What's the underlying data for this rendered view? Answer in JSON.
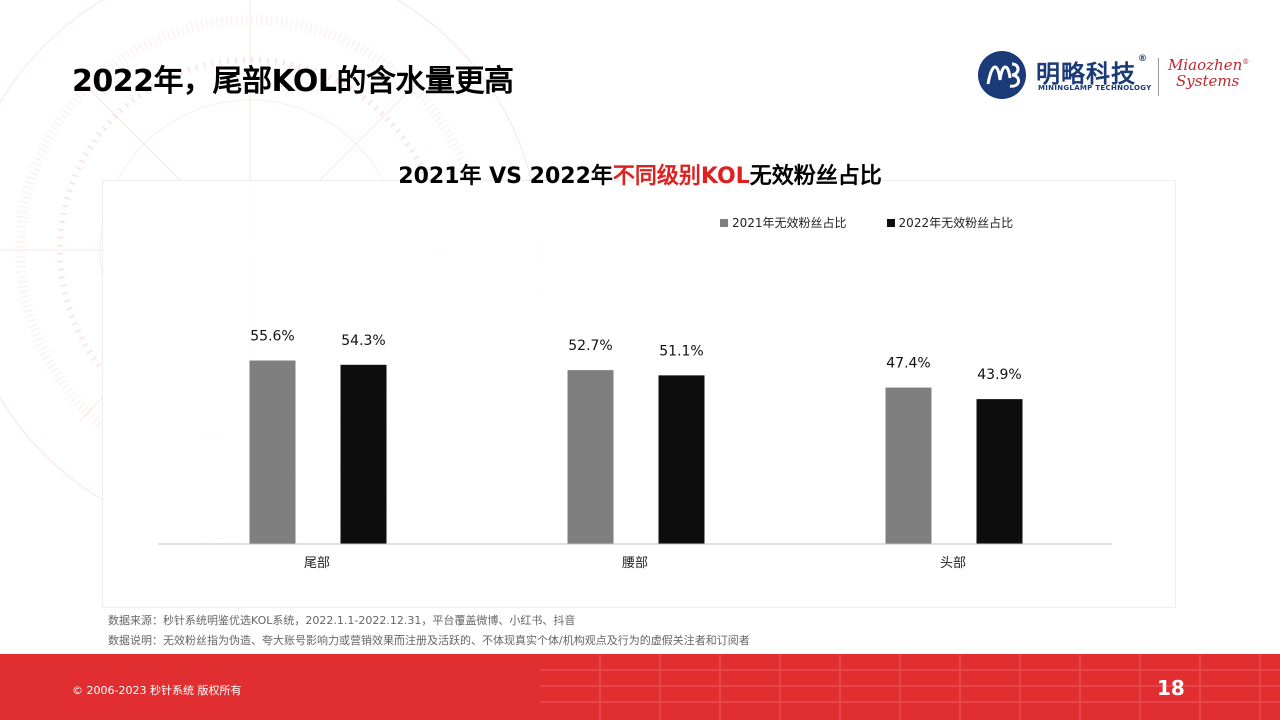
{
  "page": {
    "title": "2022年，尾部KOL的含水量更高",
    "page_number": "18",
    "copyright": "© 2006-2023 秒针系统 版权所有"
  },
  "logo": {
    "brand_cn": "明略科技",
    "brand_reg": "®",
    "brand_en": "MININGLAMP TECHNOLOGY",
    "partner_line1": "Miaozhen",
    "partner_line2": "Systems",
    "partner_reg": "®"
  },
  "chart_title": {
    "part1": "2021年 VS 2022年",
    "part2": "不同级别KOL",
    "part3": "无效粉丝占比"
  },
  "chart_data": {
    "type": "bar",
    "title": "2021年 VS 2022年不同级别KOL无效粉丝占比",
    "categories": [
      "尾部",
      "腰部",
      "头部"
    ],
    "series": [
      {
        "name": "2021年无效粉丝占比",
        "values": [
          55.6,
          52.7,
          47.4
        ],
        "labels": [
          "55.6%",
          "52.7%",
          "47.4%"
        ],
        "color": "#7f7f7f"
      },
      {
        "name": "2022年无效粉丝占比",
        "values": [
          54.3,
          51.1,
          43.9
        ],
        "labels": [
          "54.3%",
          "51.1%",
          "43.9%"
        ],
        "color": "#0d0d0d"
      }
    ],
    "ylim": [
      0,
      100
    ],
    "grid": false,
    "legend_position": "top-right"
  },
  "notes": {
    "source": "数据来源：秒针系统明鉴优选KOL系统，2022.1.1-2022.12.31，平台覆盖微博、小红书、抖音",
    "definition": "数据说明：无效粉丝指为伪造、夸大账号影响力或营销效果而注册及活跃的、不体现真实个体/机构观点及行为的虚假关注者和订阅者"
  },
  "colors": {
    "accent": "#e12e31",
    "highlight": "#e02020",
    "brand": "#1a3a78"
  }
}
